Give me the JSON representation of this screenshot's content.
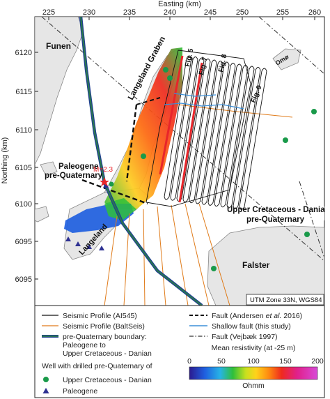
{
  "axes": {
    "x_title": "Easting (km)",
    "y_title": "Northing (km)",
    "x_ticks": [
      "225",
      "230",
      "235",
      "240",
      "245",
      "250",
      "255",
      "260"
    ],
    "y_ticks": [
      "6120",
      "6115",
      "6110",
      "6105",
      "6100",
      "6095",
      "6095"
    ]
  },
  "labels": {
    "funen": "Funen",
    "langeland_graben": "Langeland Graben",
    "paleogene_pre_quaternary": "Paleogene\npre-Quaternary",
    "magnitude": "M=2.3",
    "upper_cretaceous": "Upper Cretaceous - Danian\npre-Quaternary",
    "langeland": "Langeland",
    "falster": "Falster",
    "omo": "Omø",
    "fig5": "Fig. 5",
    "fig7": "Fig. 7",
    "fig8": "Fig. 8",
    "fig9": "Fig. 9",
    "utm_box": "UTM Zone 33N, WGS84"
  },
  "legend": {
    "seismic_al545": "Seismic Profile (AI545)",
    "seismic_baltseis": "Seismic Profile (BaltSeis)",
    "boundary_line1": "pre-Quaternary boundary:",
    "boundary_line2": "Paleogene to",
    "boundary_line3": "Upper Cretaceous - Danian",
    "well_title": "Well with drilled pre-Quaternary of",
    "well_uc": "Upper Cretaceous - Danian",
    "well_paleogene": "Paleogene",
    "fault_andersen_pre": "Fault (Andersen ",
    "fault_andersen_italic": "et al.",
    "fault_andersen_post": " 2016)",
    "shallow_fault": "Shallow fault (this study)",
    "fault_vejbaek": "Fault (Vejbæk 1997)",
    "colorbar_title": "Mean resistivity (at -25 m)",
    "colorbar_ticks": [
      "0",
      "50",
      "100",
      "150",
      "200"
    ],
    "colorbar_unit": "Ohmm"
  },
  "colors": {
    "sea": "#ffffff",
    "land": "#e6e6e6",
    "seismic_al545": "#111111",
    "seismic_baltseis": "#e07b1a",
    "boundary_outer": "#1f3f8f",
    "boundary_inner": "#2b7a4b",
    "well_uc": "#1a9a4a",
    "well_paleogene": "#2e3192",
    "shallow_fault": "#3b8fd9",
    "red_profile": "#e8252a"
  }
}
